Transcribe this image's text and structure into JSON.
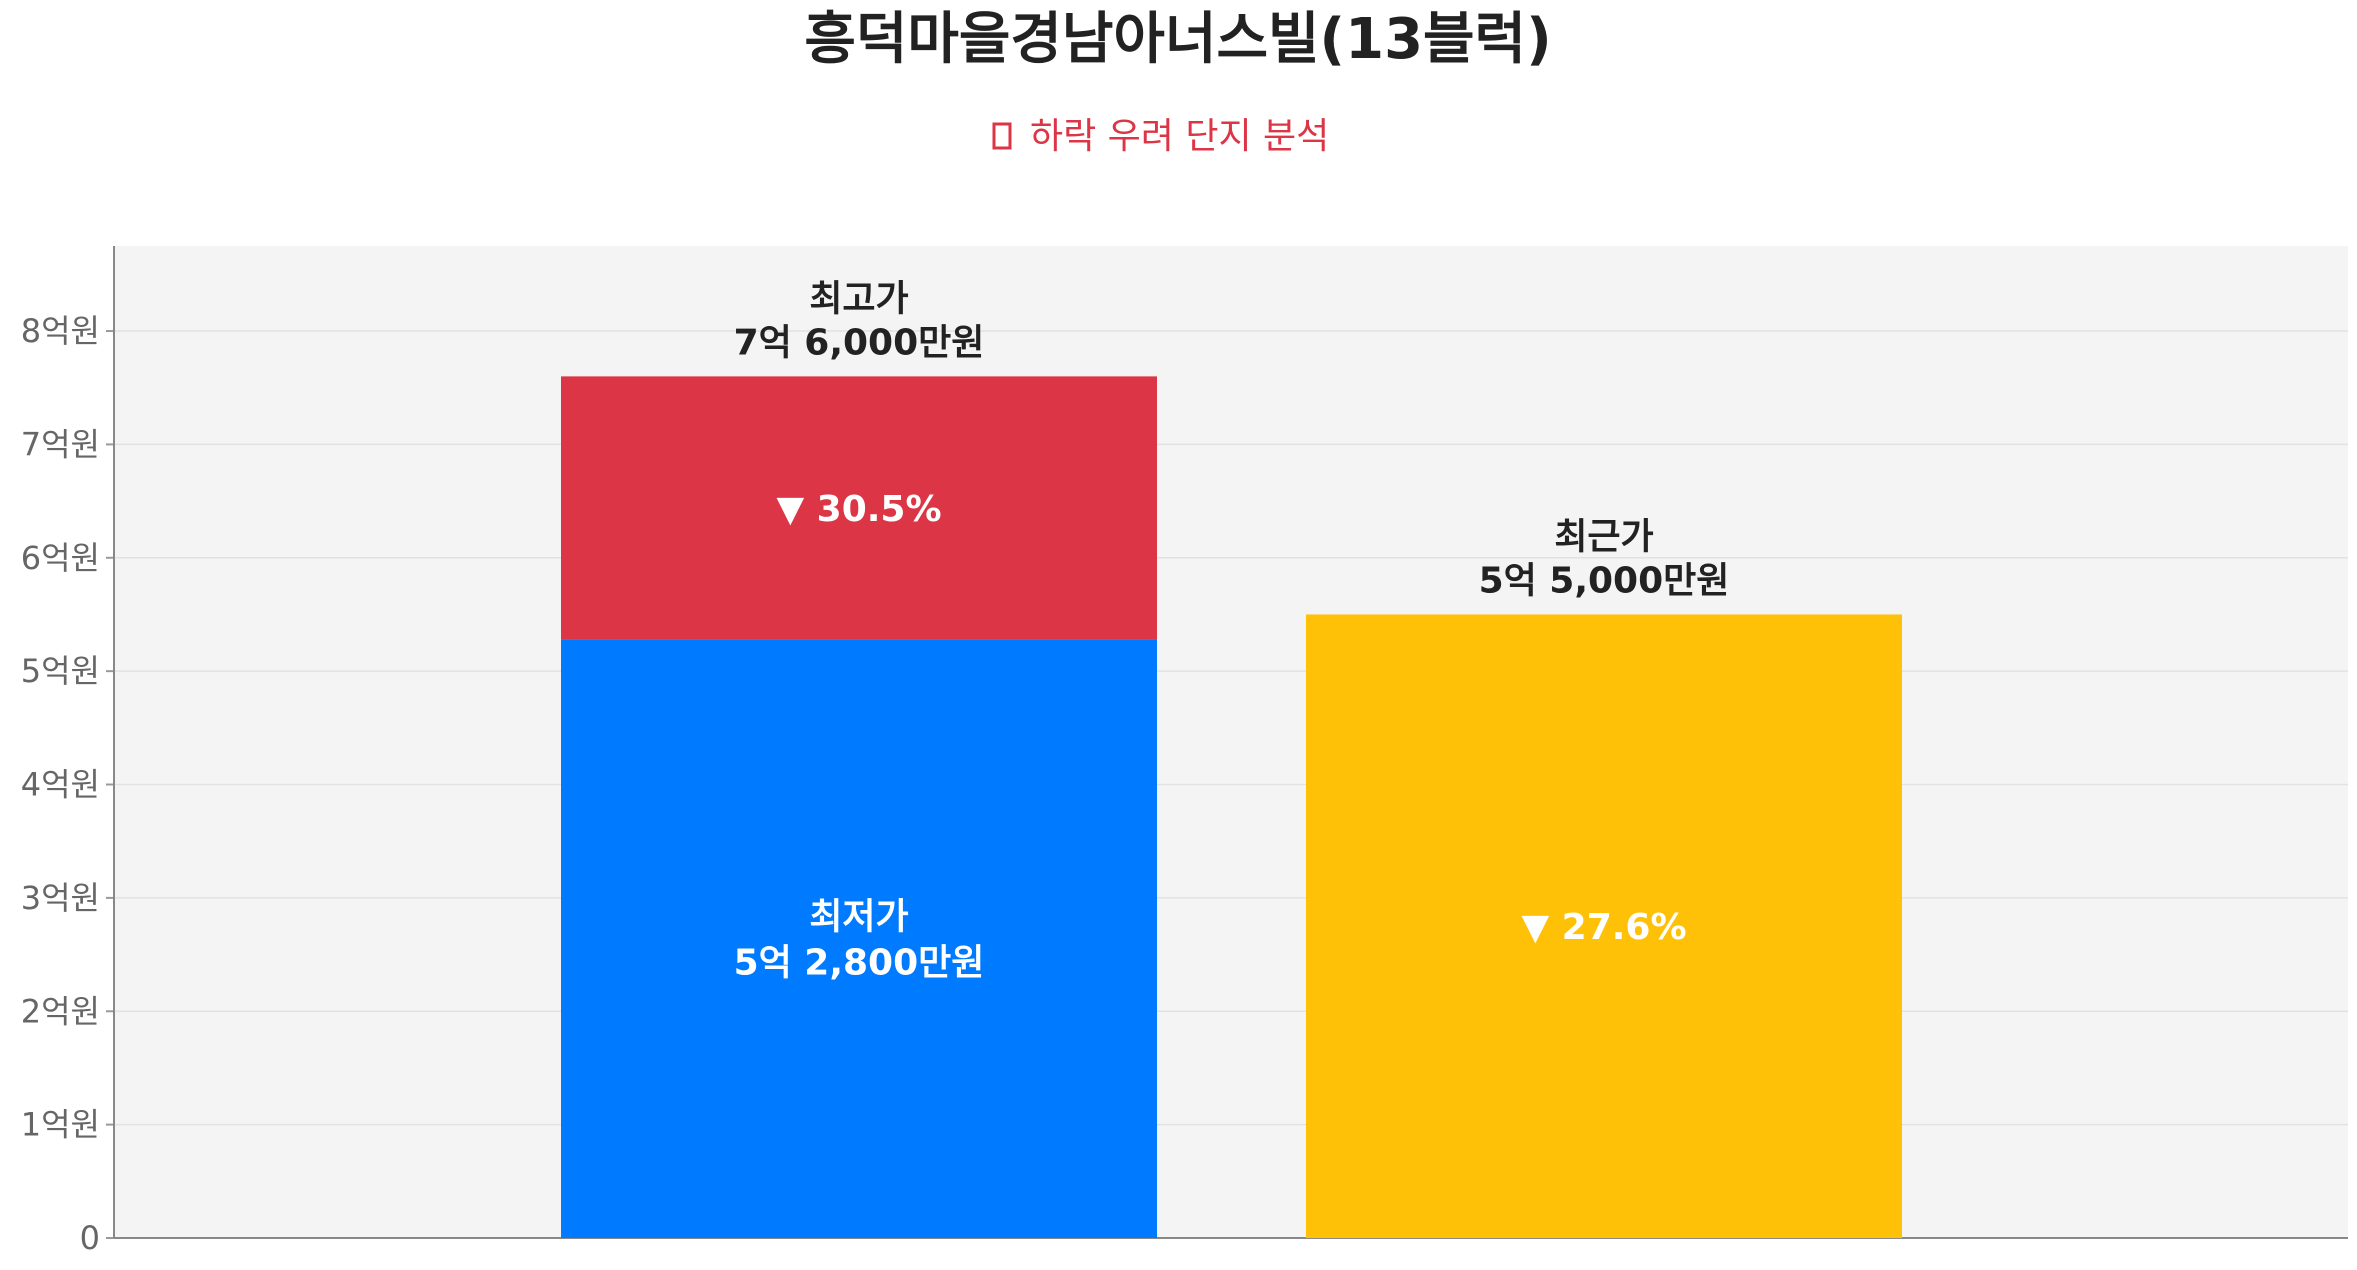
{
  "header": {
    "title": "흥덕마을경남아너스빌(13블럭)",
    "subtitle_icon": "alert-square-icon",
    "subtitle": "하락 우려 단지 분석",
    "subtitle_color": "#dc3545"
  },
  "chart_data": {
    "type": "bar",
    "title": "흥덕마을경남아너스빌(13블럭)",
    "subtitle": "하락 우려 단지 분석",
    "ylim": [
      0,
      8.75
    ],
    "yticks": [
      {
        "value": 0,
        "label": "0"
      },
      {
        "value": 1,
        "label": "1억원"
      },
      {
        "value": 2,
        "label": "2억원"
      },
      {
        "value": 3,
        "label": "3억원"
      },
      {
        "value": 4,
        "label": "4억원"
      },
      {
        "value": 5,
        "label": "5억원"
      },
      {
        "value": 6,
        "label": "6억원"
      },
      {
        "value": 7,
        "label": "7억원"
      },
      {
        "value": 8,
        "label": "8억원"
      }
    ],
    "grid": true,
    "plot_background": "#f4f4f4",
    "bars": [
      {
        "segments": [
          {
            "name": "최저가",
            "from": 0,
            "to": 5.28,
            "color": "#007bff",
            "label_lines": [
              "최저가",
              "5억 2,800만원"
            ],
            "label_color": "#ffffff"
          },
          {
            "name": "최고가",
            "from": 5.28,
            "to": 7.6,
            "color": "#dc3545",
            "label_lines": [
              "▼ 30.5%"
            ],
            "label_color": "#ffffff"
          }
        ],
        "top_label_lines": [
          "최고가",
          "7억 6,000만원"
        ]
      },
      {
        "segments": [
          {
            "name": "최근가",
            "from": 0,
            "to": 5.5,
            "color": "#ffc107",
            "label_lines": [
              "▼ 27.6%"
            ],
            "label_color": "#ffffff"
          }
        ],
        "top_label_lines": [
          "최근가",
          "5억 5,000만원"
        ]
      }
    ]
  }
}
